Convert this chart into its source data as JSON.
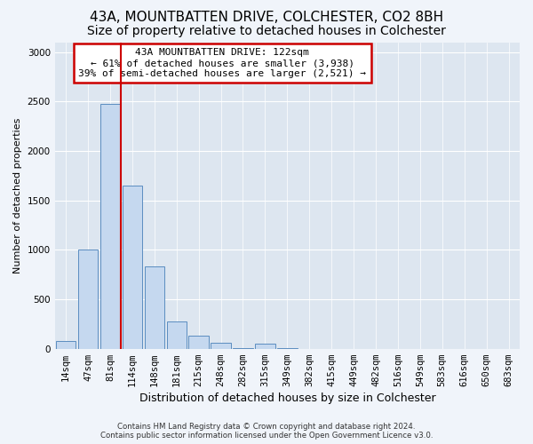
{
  "title1": "43A, MOUNTBATTEN DRIVE, COLCHESTER, CO2 8BH",
  "title2": "Size of property relative to detached houses in Colchester",
  "xlabel": "Distribution of detached houses by size in Colchester",
  "ylabel": "Number of detached properties",
  "categories": [
    "14sqm",
    "47sqm",
    "81sqm",
    "114sqm",
    "148sqm",
    "181sqm",
    "215sqm",
    "248sqm",
    "282sqm",
    "315sqm",
    "349sqm",
    "382sqm",
    "415sqm",
    "449sqm",
    "482sqm",
    "516sqm",
    "549sqm",
    "583sqm",
    "616sqm",
    "650sqm",
    "683sqm"
  ],
  "values": [
    75,
    1000,
    2480,
    1650,
    830,
    280,
    130,
    60,
    5,
    50,
    5,
    0,
    0,
    0,
    0,
    0,
    0,
    0,
    0,
    0,
    0
  ],
  "bar_color": "#c5d8ef",
  "bar_edge_color": "#5b8dc0",
  "annotation_text": "43A MOUNTBATTEN DRIVE: 122sqm\n← 61% of detached houses are smaller (3,938)\n39% of semi-detached houses are larger (2,521) →",
  "annotation_box_color": "#ffffff",
  "annotation_box_edge_color": "#cc0000",
  "property_line_color": "#cc0000",
  "ylim": [
    0,
    3100
  ],
  "yticks": [
    0,
    500,
    1000,
    1500,
    2000,
    2500,
    3000
  ],
  "fig_bg": "#f0f4fa",
  "plot_bg": "#dde6f0",
  "grid_color": "#ffffff",
  "footer": "Contains HM Land Registry data © Crown copyright and database right 2024.\nContains public sector information licensed under the Open Government Licence v3.0.",
  "title1_fontsize": 11,
  "title2_fontsize": 10,
  "xlabel_fontsize": 9,
  "ylabel_fontsize": 8,
  "tick_fontsize": 7.5,
  "annot_fontsize": 8
}
